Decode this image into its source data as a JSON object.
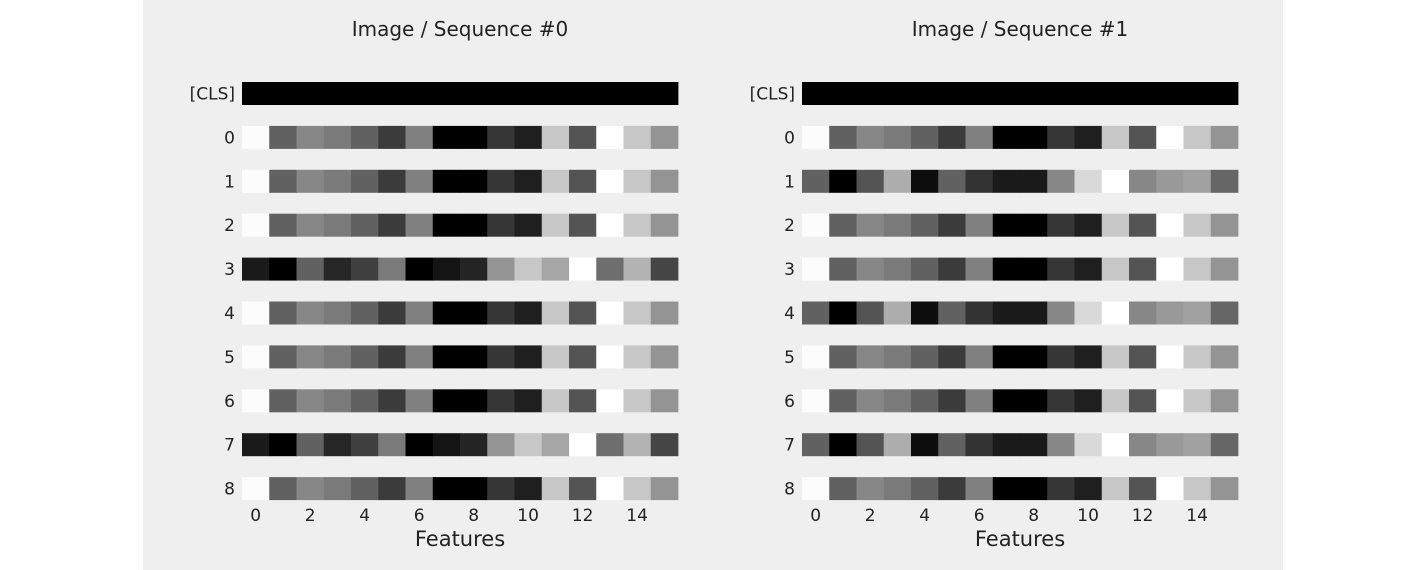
{
  "figure": {
    "background": "#efefef"
  },
  "chart_data": [
    {
      "type": "heatmap",
      "title": "Image / Sequence #0",
      "xlabel": "Features",
      "ylabel": "",
      "x_ticks": [
        0,
        2,
        4,
        6,
        8,
        10,
        12,
        14
      ],
      "x_tick_labels": [
        "0",
        "2",
        "4",
        "6",
        "8",
        "10",
        "12",
        "14"
      ],
      "row_labels": [
        "[CLS]",
        "0",
        "1",
        "2",
        "3",
        "4",
        "5",
        "6",
        "7",
        "8"
      ],
      "colormap": "gray",
      "rows": [
        [
          0,
          0,
          0,
          0,
          0,
          0,
          0,
          0,
          0,
          0,
          0,
          0,
          0,
          0,
          0,
          0
        ],
        [
          0.99,
          0.38,
          0.53,
          0.48,
          0.38,
          0.23,
          0.5,
          0.0,
          0.0,
          0.21,
          0.12,
          0.78,
          0.33,
          1.0,
          0.78,
          0.58
        ],
        [
          0.99,
          0.38,
          0.53,
          0.48,
          0.38,
          0.23,
          0.5,
          0.0,
          0.0,
          0.21,
          0.12,
          0.78,
          0.33,
          1.0,
          0.78,
          0.58
        ],
        [
          0.99,
          0.38,
          0.53,
          0.48,
          0.38,
          0.23,
          0.5,
          0.0,
          0.0,
          0.21,
          0.12,
          0.78,
          0.33,
          1.0,
          0.78,
          0.58
        ],
        [
          0.1,
          0.0,
          0.38,
          0.15,
          0.25,
          0.48,
          0.0,
          0.08,
          0.14,
          0.58,
          0.78,
          0.65,
          1.0,
          0.43,
          0.7,
          0.27
        ],
        [
          0.99,
          0.38,
          0.53,
          0.48,
          0.38,
          0.23,
          0.5,
          0.0,
          0.0,
          0.21,
          0.12,
          0.78,
          0.33,
          1.0,
          0.78,
          0.58
        ],
        [
          0.99,
          0.38,
          0.53,
          0.48,
          0.38,
          0.23,
          0.5,
          0.0,
          0.0,
          0.21,
          0.12,
          0.78,
          0.33,
          1.0,
          0.78,
          0.58
        ],
        [
          0.99,
          0.38,
          0.53,
          0.48,
          0.38,
          0.23,
          0.5,
          0.0,
          0.0,
          0.21,
          0.12,
          0.78,
          0.33,
          1.0,
          0.78,
          0.58
        ],
        [
          0.1,
          0.0,
          0.38,
          0.15,
          0.25,
          0.48,
          0.0,
          0.08,
          0.14,
          0.58,
          0.78,
          0.65,
          1.0,
          0.43,
          0.7,
          0.27
        ],
        [
          0.99,
          0.38,
          0.53,
          0.48,
          0.38,
          0.23,
          0.5,
          0.0,
          0.0,
          0.21,
          0.12,
          0.78,
          0.33,
          1.0,
          0.78,
          0.58
        ]
      ]
    },
    {
      "type": "heatmap",
      "title": "Image / Sequence #1",
      "xlabel": "Features",
      "ylabel": "",
      "x_ticks": [
        0,
        2,
        4,
        6,
        8,
        10,
        12,
        14
      ],
      "x_tick_labels": [
        "0",
        "2",
        "4",
        "6",
        "8",
        "10",
        "12",
        "14"
      ],
      "row_labels": [
        "[CLS]",
        "0",
        "1",
        "2",
        "3",
        "4",
        "5",
        "6",
        "7",
        "8"
      ],
      "colormap": "gray",
      "rows": [
        [
          0,
          0,
          0,
          0,
          0,
          0,
          0,
          0,
          0,
          0,
          0,
          0,
          0,
          0,
          0,
          0
        ],
        [
          0.99,
          0.38,
          0.53,
          0.48,
          0.38,
          0.23,
          0.5,
          0.0,
          0.0,
          0.21,
          0.12,
          0.78,
          0.33,
          1.0,
          0.78,
          0.58
        ],
        [
          0.38,
          0.0,
          0.33,
          0.68,
          0.05,
          0.38,
          0.2,
          0.1,
          0.1,
          0.53,
          0.85,
          1.0,
          0.53,
          0.6,
          0.63,
          0.4
        ],
        [
          0.99,
          0.38,
          0.53,
          0.48,
          0.38,
          0.23,
          0.5,
          0.0,
          0.0,
          0.21,
          0.12,
          0.78,
          0.33,
          1.0,
          0.78,
          0.58
        ],
        [
          0.99,
          0.38,
          0.53,
          0.48,
          0.38,
          0.23,
          0.5,
          0.0,
          0.0,
          0.21,
          0.12,
          0.78,
          0.33,
          1.0,
          0.78,
          0.58
        ],
        [
          0.38,
          0.0,
          0.33,
          0.68,
          0.05,
          0.38,
          0.2,
          0.1,
          0.1,
          0.53,
          0.85,
          1.0,
          0.53,
          0.6,
          0.63,
          0.4
        ],
        [
          0.99,
          0.38,
          0.53,
          0.48,
          0.38,
          0.23,
          0.5,
          0.0,
          0.0,
          0.21,
          0.12,
          0.78,
          0.33,
          1.0,
          0.78,
          0.58
        ],
        [
          0.99,
          0.38,
          0.53,
          0.48,
          0.38,
          0.23,
          0.5,
          0.0,
          0.0,
          0.21,
          0.12,
          0.78,
          0.33,
          1.0,
          0.78,
          0.58
        ],
        [
          0.38,
          0.0,
          0.33,
          0.68,
          0.05,
          0.38,
          0.2,
          0.1,
          0.1,
          0.53,
          0.85,
          1.0,
          0.53,
          0.6,
          0.63,
          0.4
        ],
        [
          0.99,
          0.38,
          0.53,
          0.48,
          0.38,
          0.23,
          0.5,
          0.0,
          0.0,
          0.21,
          0.12,
          0.78,
          0.33,
          1.0,
          0.78,
          0.58
        ]
      ]
    }
  ]
}
